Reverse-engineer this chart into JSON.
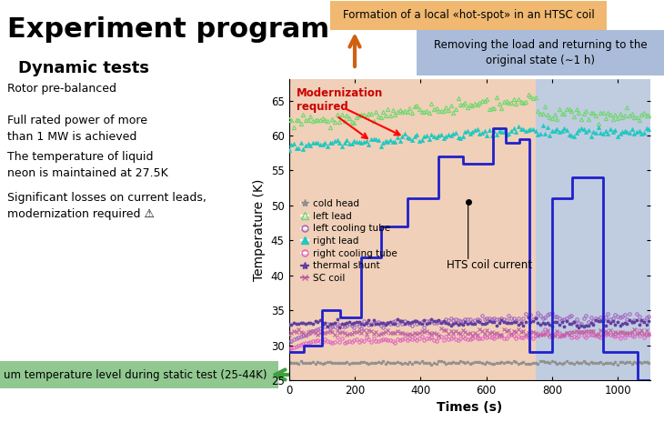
{
  "title": "Experiment program",
  "subtitle": "Dynamic tests",
  "bullets": [
    "Rotor pre-balanced",
    "Full rated power of more\nthan 1 MW is achieved",
    "The temperature of liquid\nneon is maintained at 27.5K",
    "Significant losses on current leads,\nmodernization required ⚠"
  ],
  "bottom_label": "um temperature level during static test (25-44K)",
  "annot_orange": "Formation of a local «hot-spot» in an HTSC coil",
  "annot_blue": "Removing the load and returning to the\noriginal state (∼1 h)",
  "modernization_text": "Modernization\nrequired",
  "hts_label": "HTS coil current",
  "xlabel": "Times (s)",
  "ylabel": "Temperature (K)",
  "xlim": [
    0,
    1100
  ],
  "ylim": [
    25,
    68
  ],
  "yticks": [
    25,
    30,
    35,
    40,
    45,
    50,
    55,
    60,
    65
  ],
  "xticks": [
    0,
    200,
    400,
    600,
    800,
    1000
  ],
  "bg_green_ylim": [
    25,
    44
  ],
  "bg_orange_xlim": [
    0,
    750
  ],
  "bg_blue_xlim": [
    750,
    1100
  ],
  "legend_entries": [
    "cold head",
    "left lead",
    "left cooling tube",
    "right lead",
    "right cooling tube",
    "thermal shunt",
    "SC coil"
  ],
  "colors": {
    "cold_head": "#909090",
    "left_lead": "#70d870",
    "left_cooling_tube": "#a060c0",
    "right_lead": "#20c8c0",
    "right_cooling_tube": "#e060c0",
    "thermal_shunt": "#6040a0",
    "sc_coil": "#c060a0",
    "hts_current": "#2020cc",
    "bg_green": "#d0eac8",
    "bg_orange": "#f0d0b8",
    "bg_blue": "#c0cce0",
    "annot_orange_bg": "#f0b870",
    "annot_blue_bg": "#aabcda",
    "modernization": "#cc0000",
    "bottom_label_bg": "#90c890",
    "arrow_orange": "#d06010",
    "arrow_green": "#40a040"
  }
}
